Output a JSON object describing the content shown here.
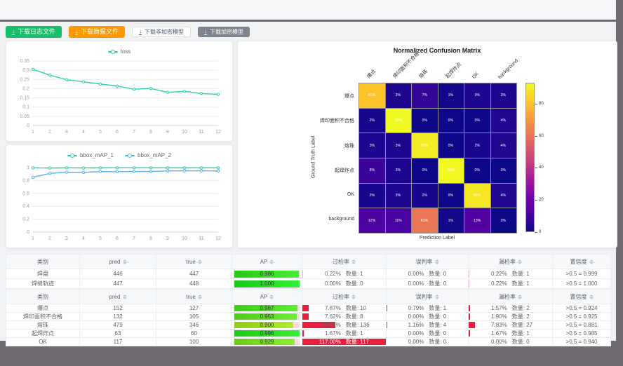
{
  "colors": {
    "backdrop": "#6f6b70",
    "button_green": "#19be6b",
    "button_orange": "#ff9900",
    "button_gray": "#80848f",
    "loss_line": "#2ed0ae",
    "map2_line": "#5ab1ef",
    "ap_bar_track": "#fbd9e0",
    "rate_bar_red": "#e7203f"
  },
  "toolbar": {
    "buttons": [
      {
        "label": "下载日志文件",
        "variant": "green"
      },
      {
        "label": "下载简报文件",
        "variant": "orange"
      },
      {
        "label": "下载非加密模型",
        "variant": "white"
      },
      {
        "label": "下载加密模型",
        "variant": "gray"
      }
    ]
  },
  "chart_data": [
    {
      "id": "loss",
      "type": "line",
      "legend_position": "top",
      "x": [
        1,
        2,
        3,
        4,
        5,
        6,
        7,
        8,
        9,
        10,
        11,
        12
      ],
      "series": [
        {
          "name": "loss",
          "color": "#2ed0ae",
          "values": [
            0.305,
            0.273,
            0.249,
            0.237,
            0.225,
            0.214,
            0.197,
            0.201,
            0.18,
            0.185,
            0.174,
            0.169
          ]
        }
      ],
      "ylim": [
        0,
        0.35
      ],
      "yticks": [
        0,
        0.05,
        0.1,
        0.15,
        0.2,
        0.25,
        0.3,
        0.35
      ],
      "grid": true
    },
    {
      "id": "bbox_mAP",
      "type": "line",
      "legend_position": "top",
      "x": [
        1,
        2,
        3,
        4,
        5,
        6,
        7,
        8,
        9,
        10,
        11,
        12
      ],
      "series": [
        {
          "name": "bbox_mAP_1",
          "color": "#2ed0ae",
          "values": [
            0.995,
            0.993,
            0.996,
            0.994,
            0.996,
            0.997,
            0.997,
            0.997,
            0.996,
            0.996,
            0.996,
            0.997
          ]
        },
        {
          "name": "bbox_mAP_2",
          "color": "#5ab1ef",
          "values": [
            0.85,
            0.91,
            0.928,
            0.925,
            0.938,
            0.937,
            0.94,
            0.939,
            0.948,
            0.95,
            0.949,
            0.948
          ]
        }
      ],
      "ylim": [
        0,
        1
      ],
      "yticks": [
        0,
        0.2,
        0.4,
        0.6,
        0.8,
        1
      ],
      "grid": true
    },
    {
      "id": "confusion_matrix",
      "type": "heatmap",
      "title": "Normalized Confusion Matrix",
      "xlabel": "Prediction Label",
      "ylabel": "Ground Truth Label",
      "labels": [
        "爆点",
        "焊印面积不合格",
        "熔珠",
        "起焊炸点",
        "OK",
        "background"
      ],
      "matrix_pct": [
        [
          81,
          3,
          7,
          1,
          3,
          3
        ],
        [
          2,
          93,
          0,
          0,
          0,
          4
        ],
        [
          3,
          3,
          90,
          0,
          2,
          4
        ],
        [
          8,
          3,
          0,
          93,
          0,
          0
        ],
        [
          2,
          3,
          2,
          0,
          89,
          4
        ],
        [
          12,
          11,
          61,
          1,
          13,
          0
        ]
      ],
      "vmax": 93,
      "colormap": "plasma",
      "colorbar_ticks": [
        0,
        20,
        40,
        60,
        80
      ]
    }
  ],
  "tables": [
    {
      "headers": [
        {
          "label": "类别",
          "sortable": false
        },
        {
          "label": "pred",
          "sortable": true
        },
        {
          "label": "true",
          "sortable": true
        },
        {
          "label": "AP",
          "sortable": true
        },
        {
          "label": "过检率",
          "sortable": true
        },
        {
          "label": "误判率",
          "sortable": true
        },
        {
          "label": "漏检率",
          "sortable": true
        },
        {
          "label": "置信度",
          "sortable": true
        }
      ],
      "rows": [
        {
          "cls": "焊盘",
          "pred": "446",
          "true": "447",
          "ap": 0.986,
          "over": {
            "pct": "0.22%",
            "count": "数量: 1",
            "value": 0.22
          },
          "misjudge": {
            "pct": "0.00%",
            "count": "数量: 0",
            "value": 0
          },
          "miss": {
            "pct": "0.22%",
            "count": "数量: 1",
            "value": 0.22
          },
          "conf": ">0.5 = 0.999"
        },
        {
          "cls": "焊缝轨迹",
          "pred": "447",
          "true": "448",
          "ap": 1.0,
          "over": {
            "pct": "0.00%",
            "count": "数量: 0",
            "value": 0
          },
          "misjudge": {
            "pct": "0.00%",
            "count": "数量: 0",
            "value": 0
          },
          "miss": {
            "pct": "0.22%",
            "count": "数量: 1",
            "value": 0.22
          },
          "conf": ">0.5 = 1.000"
        }
      ]
    },
    {
      "headers": [
        {
          "label": "类别",
          "sortable": false
        },
        {
          "label": "pred",
          "sortable": true
        },
        {
          "label": "true",
          "sortable": true
        },
        {
          "label": "AP",
          "sortable": true
        },
        {
          "label": "过检率",
          "sortable": true
        },
        {
          "label": "误判率",
          "sortable": true
        },
        {
          "label": "漏检率",
          "sortable": true
        },
        {
          "label": "置信度",
          "sortable": true
        }
      ],
      "rows": [
        {
          "cls": "爆点",
          "pred": "152",
          "true": "127",
          "ap": 0.967,
          "over": {
            "pct": "7.87%",
            "count": "数量: 10",
            "value": 7.87
          },
          "misjudge": {
            "pct": "0.79%",
            "count": "数量: 1",
            "value": 0.79
          },
          "miss": {
            "pct": "1.57%",
            "count": "数量: 2",
            "value": 1.57
          },
          "conf": ">0.5 = 0.924"
        },
        {
          "cls": "焊印面积不合格",
          "pred": "132",
          "true": "105",
          "ap": 0.953,
          "over": {
            "pct": "7.62%",
            "count": "数量: 8",
            "value": 7.62
          },
          "misjudge": {
            "pct": "0.00%",
            "count": "数量: 0",
            "value": 0
          },
          "miss": {
            "pct": "1.90%",
            "count": "数量: 2",
            "value": 1.9
          },
          "conf": ">0.5 = 0.925"
        },
        {
          "cls": "熔珠",
          "pred": "479",
          "true": "346",
          "ap": 0.9,
          "over": {
            "pct": "39.42%",
            "count": "数量: 136",
            "value": 39.42
          },
          "misjudge": {
            "pct": "1.16%",
            "count": "数量: 4",
            "value": 1.16
          },
          "miss": {
            "pct": "7.83%",
            "count": "数量: 27",
            "value": 7.83
          },
          "conf": ">0.5 = 0.881"
        },
        {
          "cls": "起焊炸点",
          "pred": "63",
          "true": "60",
          "ap": 0.996,
          "over": {
            "pct": "1.67%",
            "count": "数量: 1",
            "value": 1.67
          },
          "misjudge": {
            "pct": "0.00%",
            "count": "数量: 0",
            "value": 0
          },
          "miss": {
            "pct": "1.67%",
            "count": "数量: 1",
            "value": 1.67
          },
          "conf": ">0.5 = 0.985"
        },
        {
          "cls": "OK",
          "pred": "117",
          "true": "100",
          "ap": 0.929,
          "over": {
            "pct": "117.00%",
            "count": "数量: 117",
            "value": 117
          },
          "misjudge": {
            "pct": "0.00%",
            "count": "数量: 0",
            "value": 0
          },
          "miss": {
            "pct": "0.00%",
            "count": "数量: 0",
            "value": 0
          },
          "conf": ">0.5 = 0.940"
        }
      ]
    }
  ]
}
